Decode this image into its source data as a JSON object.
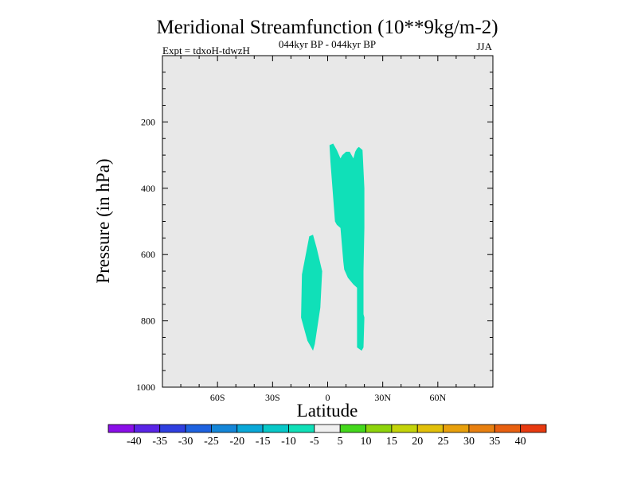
{
  "chart_data": {
    "type": "contour",
    "title": "Meridional Streamfunction (10**9kg/m-2)",
    "subtitle_center": "044kyr BP - 044kyr BP",
    "subtitle_left": "Expt = tdxoH-tdwzH",
    "subtitle_right": "JJA",
    "xlabel": "Latitude",
    "ylabel": "Pressure (in hPa)",
    "xlim": [
      -90,
      90
    ],
    "ylim": [
      0,
      1000
    ],
    "y_reversed": true,
    "x_ticks": [
      {
        "value": -60,
        "label": "60S"
      },
      {
        "value": -30,
        "label": "30S"
      },
      {
        "value": 0,
        "label": "0"
      },
      {
        "value": 30,
        "label": "30N"
      },
      {
        "value": 60,
        "label": "60N"
      }
    ],
    "y_ticks": [
      {
        "value": 200,
        "label": "200"
      },
      {
        "value": 400,
        "label": "400"
      },
      {
        "value": 600,
        "label": "600"
      },
      {
        "value": 800,
        "label": "800"
      },
      {
        "value": 1000,
        "label": "1000"
      }
    ],
    "background_color": "#e8e8e8",
    "regions": [
      {
        "name": "-10 to -5 region (south)",
        "level": "-10 to -5",
        "color": "#10e0b8",
        "points": [
          [
            -14,
            660
          ],
          [
            -10,
            545
          ],
          [
            -8,
            540
          ],
          [
            -6,
            580
          ],
          [
            -3,
            650
          ],
          [
            -4,
            760
          ],
          [
            -7,
            870
          ],
          [
            -8,
            890
          ],
          [
            -11,
            860
          ],
          [
            -13,
            820
          ],
          [
            -14.5,
            790
          ]
        ]
      },
      {
        "name": "-10 to -5 region (north)",
        "level": "-10 to -5",
        "color": "#10e0b8",
        "points": [
          [
            1,
            270
          ],
          [
            3,
            265
          ],
          [
            5,
            285
          ],
          [
            7,
            310
          ],
          [
            8,
            300
          ],
          [
            9,
            295
          ],
          [
            10,
            290
          ],
          [
            12,
            290
          ],
          [
            14,
            310
          ],
          [
            15,
            290
          ],
          [
            16,
            280
          ],
          [
            17,
            275
          ],
          [
            19,
            285
          ],
          [
            20,
            400
          ],
          [
            20,
            520
          ],
          [
            19.5,
            650
          ],
          [
            19.5,
            780
          ],
          [
            20,
            790
          ],
          [
            19.5,
            880
          ],
          [
            18.5,
            890
          ],
          [
            16,
            880
          ],
          [
            16,
            700
          ],
          [
            14,
            690
          ],
          [
            11,
            670
          ],
          [
            9,
            645
          ],
          [
            8.5,
            620
          ],
          [
            7,
            520
          ],
          [
            5,
            510
          ],
          [
            4,
            500
          ],
          [
            1.5,
            320
          ]
        ]
      }
    ],
    "colorbar": {
      "labels": [
        "-40",
        "-35",
        "-30",
        "-25",
        "-20",
        "-15",
        "-10",
        "-5",
        "5",
        "10",
        "15",
        "20",
        "25",
        "30",
        "35",
        "40"
      ],
      "colors": [
        "#8a0fe8",
        "#5a24e6",
        "#2f3fe0",
        "#1e62e0",
        "#1486d8",
        "#0aa8d8",
        "#08c8c8",
        "#10e0b8",
        "#f0f0f0",
        "#44d81c",
        "#8ed40c",
        "#c4d40a",
        "#e2c00a",
        "#e8a00c",
        "#e88010",
        "#e86010",
        "#e83a10"
      ]
    }
  }
}
